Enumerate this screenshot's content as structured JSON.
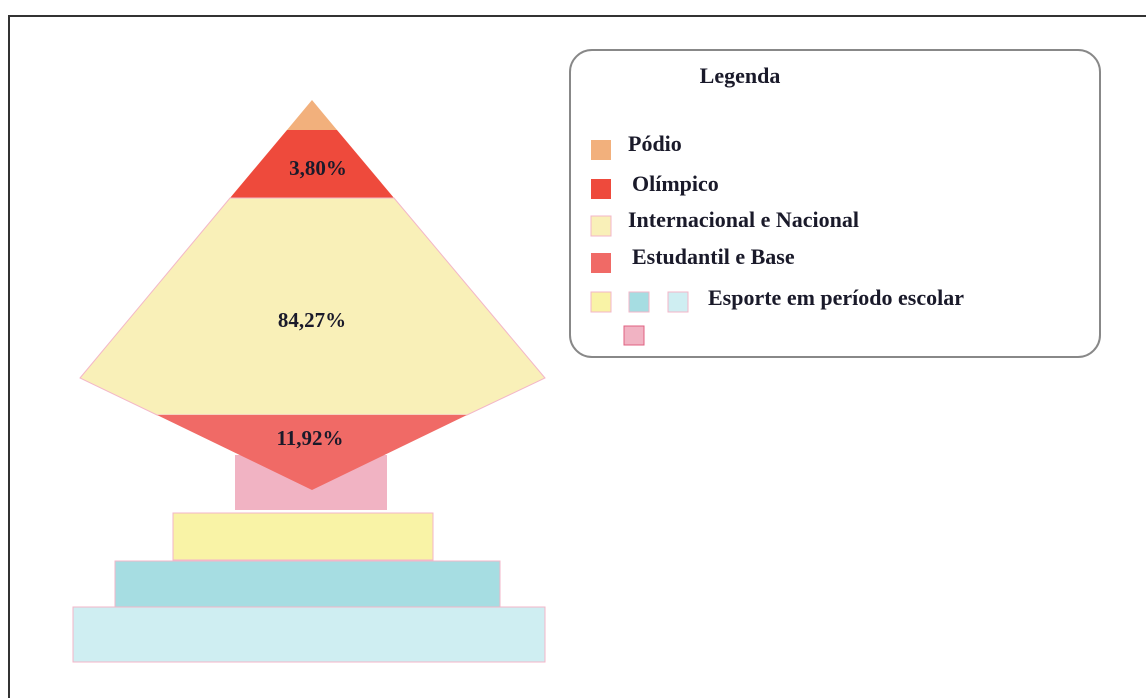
{
  "pyramid": {
    "labels": [
      "3,80%",
      "84,27%",
      "11,92%"
    ]
  },
  "legend": {
    "title": "Legenda",
    "items": [
      "Pódio",
      "Olímpico",
      "Internacional e Nacional",
      "Estudantil e Base",
      "Esporte em período escolar"
    ]
  }
}
